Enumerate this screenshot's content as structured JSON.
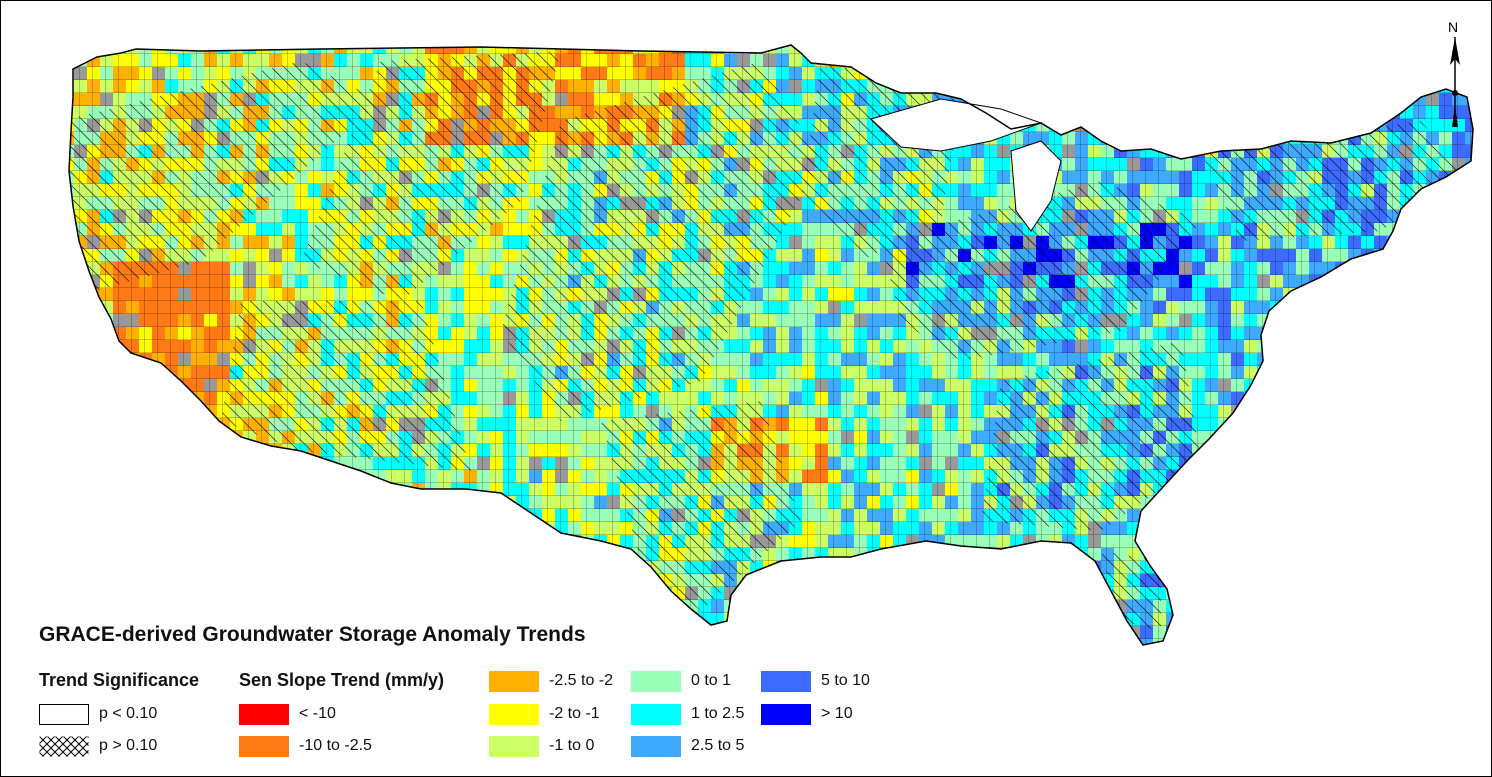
{
  "map": {
    "region": "Contiguous United States",
    "grid_cell_colors_sample": "1-degree cells colored by trend class; gray = no data; hatched = p > 0.10"
  },
  "north_arrow": {
    "label": "N"
  },
  "legend": {
    "title": "GRACE-derived Groundwater Storage Anomaly Trends",
    "significance": {
      "heading": "Trend Significance",
      "items": [
        {
          "label": "p < 0.10",
          "pattern": "none"
        },
        {
          "label": "p > 0.10",
          "pattern": "crosshatch"
        }
      ]
    },
    "trend": {
      "heading": "Sen Slope Trend (mm/y)",
      "classes": [
        {
          "label": "< -10",
          "color": "#ff0000"
        },
        {
          "label": "-10 to -2.5",
          "color": "#ff7a14"
        },
        {
          "label": "-2.5 to -2",
          "color": "#ffb000"
        },
        {
          "label": "-2 to -1",
          "color": "#ffff00"
        },
        {
          "label": "-1 to 0",
          "color": "#ccff66"
        },
        {
          "label": "0 to 1",
          "color": "#99ffb8"
        },
        {
          "label": "1 to 2.5",
          "color": "#00ffff"
        },
        {
          "label": "2.5 to 5",
          "color": "#3daaff"
        },
        {
          "label": "5 to 10",
          "color": "#3d6bff"
        },
        {
          "label": "> 10",
          "color": "#0000ff"
        }
      ],
      "no_data_color": "#999999"
    }
  }
}
